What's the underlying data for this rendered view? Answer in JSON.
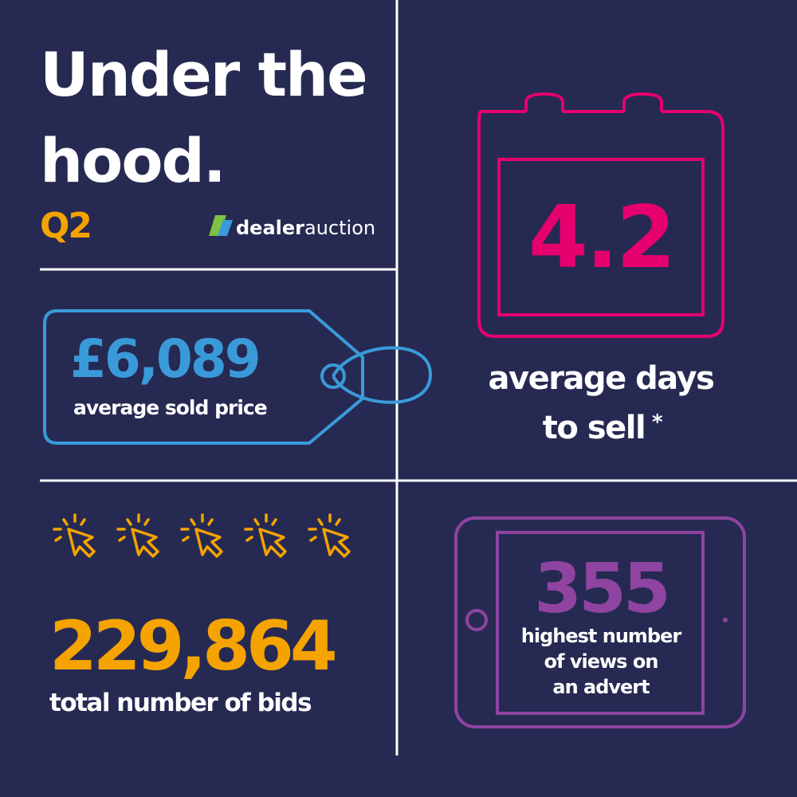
{
  "header": {
    "title_line1": "Under the",
    "title_line2": "hood.",
    "subtitle": "Q2",
    "logo": {
      "part1": "dealer",
      "part2": "auction"
    }
  },
  "price": {
    "value": "£6,089",
    "label": "average sold price"
  },
  "days": {
    "value": "4.2",
    "label_line1": "average days",
    "label_line2": "to sell",
    "footnote_mark": "*"
  },
  "bids": {
    "value": "229,864",
    "label": "total number of bids"
  },
  "views": {
    "value": "355",
    "label_lines": [
      "highest number",
      "of views on",
      "an advert"
    ]
  }
}
